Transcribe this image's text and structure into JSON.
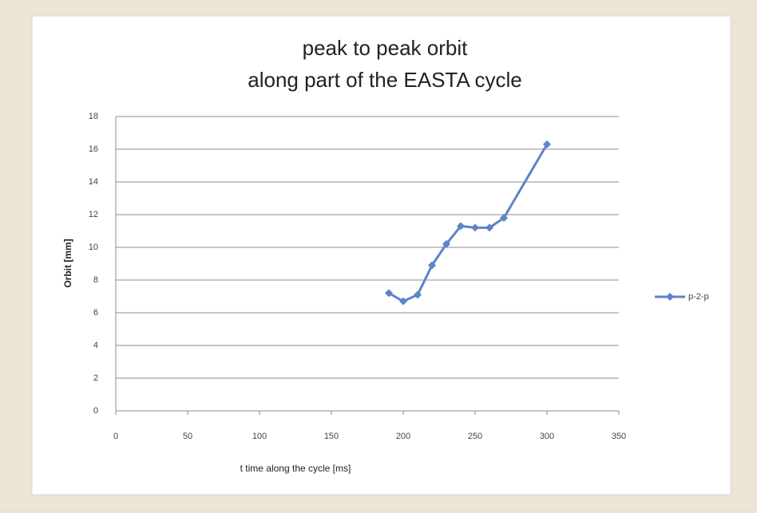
{
  "chart_data": {
    "type": "line",
    "title": "peak to peak orbit",
    "subtitle": "along part of the EASTA cycle",
    "x_label": "t time along the cycle [ms]",
    "y_label": "Orbit [mm]",
    "x": [
      190,
      200,
      210,
      220,
      230,
      240,
      250,
      260,
      270,
      300
    ],
    "series": [
      {
        "name": "p-2-p",
        "color": "#5b85c6",
        "values": [
          7.2,
          6.7,
          7.1,
          8.9,
          10.2,
          11.3,
          11.2,
          11.2,
          11.8,
          16.3
        ]
      }
    ],
    "xlim": [
      0,
      350
    ],
    "xticks": [
      0,
      50,
      100,
      150,
      200,
      250,
      300,
      350
    ],
    "ylim": [
      0,
      18
    ],
    "yticks": [
      0,
      2,
      4,
      6,
      8,
      10,
      12,
      14,
      16,
      18
    ],
    "grid": true,
    "legend": "right"
  }
}
